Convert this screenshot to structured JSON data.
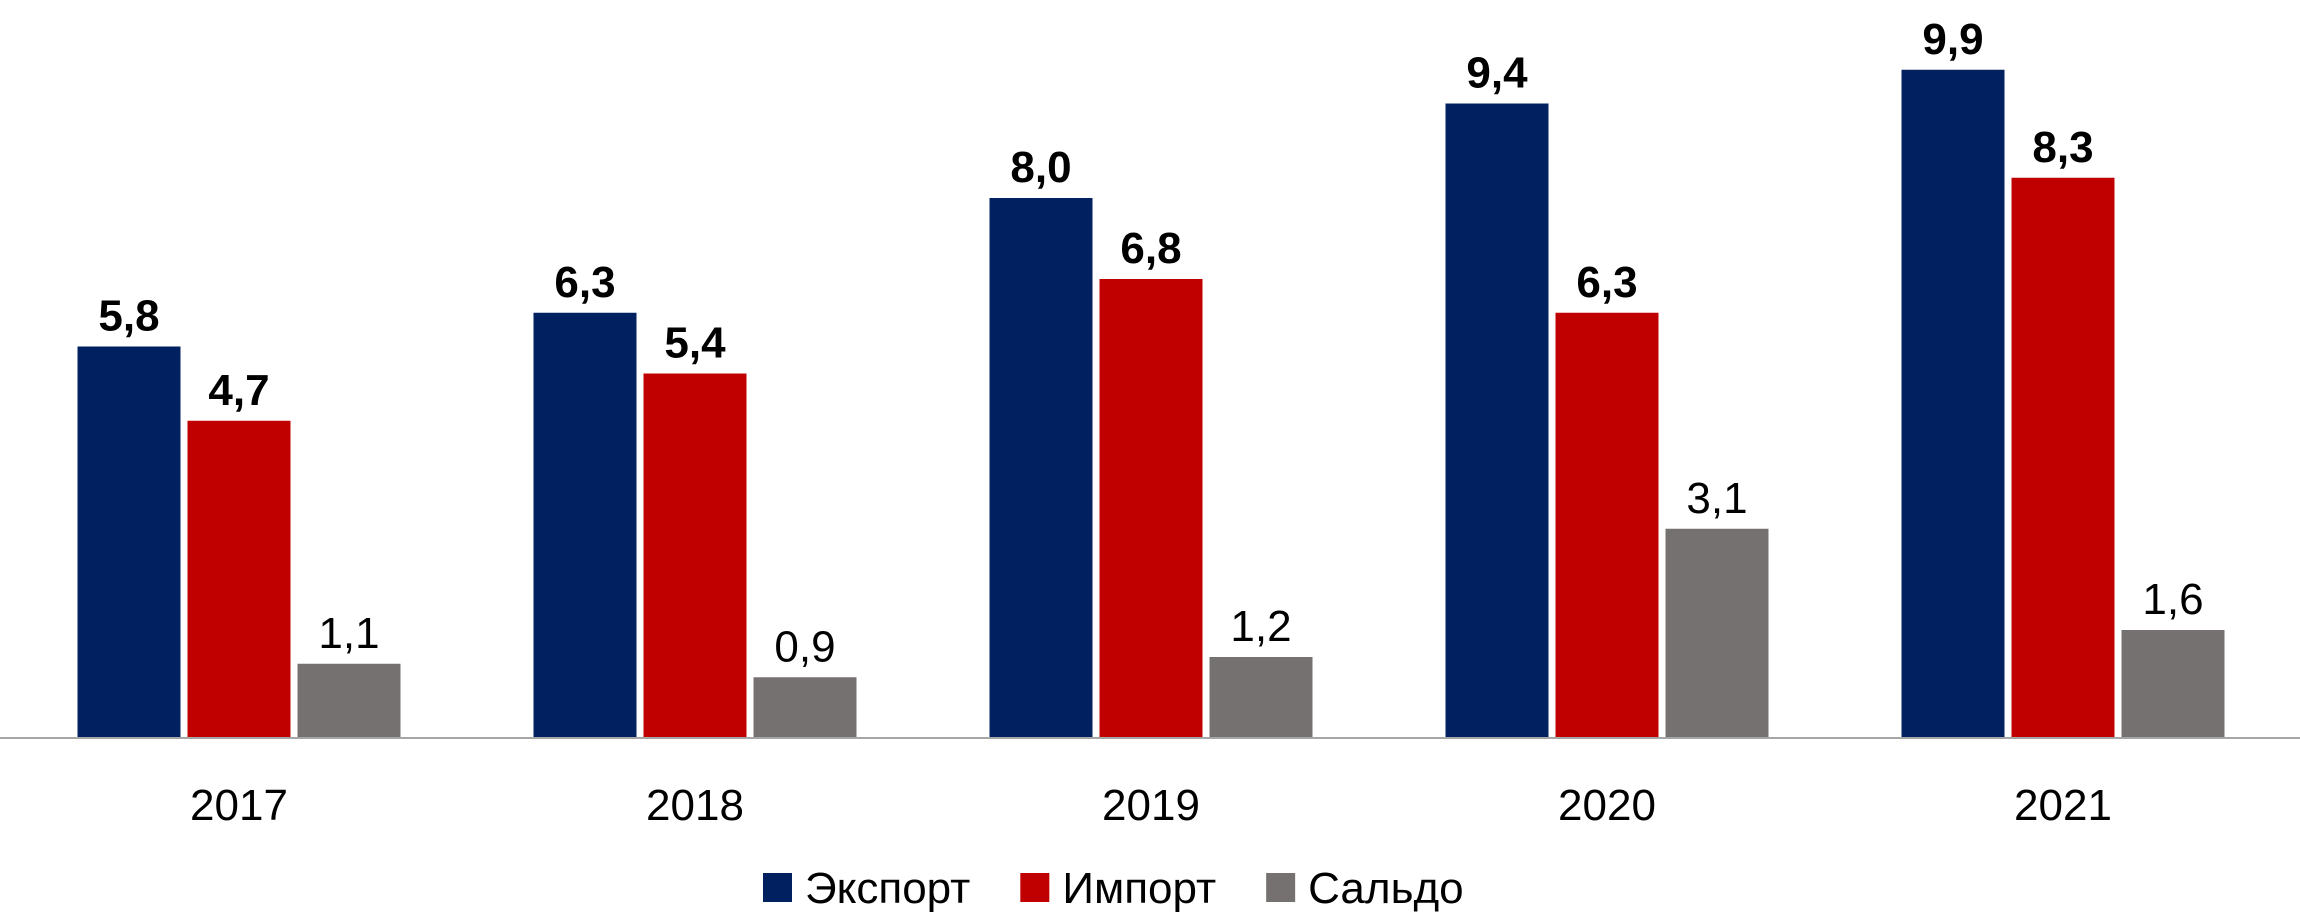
{
  "chart_data": {
    "type": "bar",
    "categories": [
      "2017",
      "2018",
      "2019",
      "2020",
      "2021"
    ],
    "series": [
      {
        "name": "Экспорт",
        "color": "#002060",
        "values": [
          5.8,
          6.3,
          8.0,
          9.4,
          9.9
        ],
        "value_labels": [
          "5,8",
          "6,3",
          "8,0",
          "9,4",
          "9,9"
        ]
      },
      {
        "name": "Импорт",
        "color": "#c00000",
        "values": [
          4.7,
          5.4,
          6.8,
          6.3,
          8.3
        ],
        "value_labels": [
          "4,7",
          "5,4",
          "6,8",
          "6,3",
          "8,3"
        ]
      },
      {
        "name": "Сальдо",
        "color": "#767171",
        "values": [
          1.1,
          0.9,
          1.2,
          3.1,
          1.6
        ],
        "value_labels": [
          "1,1",
          "0,9",
          "1,2",
          "3,1",
          "1,6"
        ]
      }
    ],
    "ylim": [
      0,
      10
    ],
    "legend": "bottom"
  }
}
